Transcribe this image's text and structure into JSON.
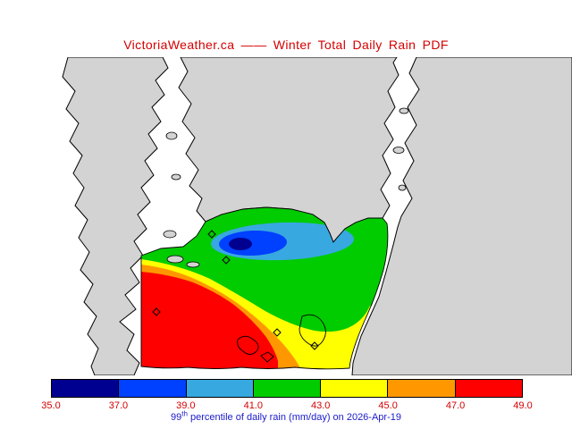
{
  "title": {
    "text": "VictoriaWeather.ca —— Winter Total Daily Rain PDF",
    "color": "#d40000"
  },
  "map": {
    "land_color": "#d3d3d3",
    "water_color": "#ffffff",
    "coast_color": "#000000",
    "marker_shape": "diamond"
  },
  "colorbar": {
    "levels": [
      "35.0",
      "37.0",
      "39.0",
      "41.0",
      "43.0",
      "45.0",
      "47.0",
      "49.0"
    ],
    "segment_colors": [
      "#000090",
      "#0040ff",
      "#38a8e0",
      "#00cc00",
      "#ffff00",
      "#ff9800",
      "#ff0000"
    ],
    "tick_color": "#d40000",
    "border_color": "#000000"
  },
  "caption": {
    "base": "99",
    "superscript": "th",
    "rest": " percentile of daily rain (mm/day) on 2026-Apr-19",
    "color": "#1a1acc"
  },
  "chart_data": {
    "type": "heatmap",
    "title": "Winter Total Daily Rain PDF",
    "variable": "99th percentile of daily rain",
    "units": "mm/day",
    "date": "2026-Apr-19",
    "levels": [
      35.0,
      37.0,
      39.0,
      41.0,
      43.0,
      45.0,
      47.0,
      49.0
    ],
    "band_colors": [
      "#000090",
      "#0040ff",
      "#38a8e0",
      "#00cc00",
      "#ffff00",
      "#ff9800",
      "#ff0000"
    ],
    "legend_position": "bottom",
    "pattern": "Minimum (~35 mm/day) in a small pocket north of the city core; values increase outward through blue/cyan/green bands to a broad maximum (~49 mm/day) over the southwest of the mapped region."
  }
}
